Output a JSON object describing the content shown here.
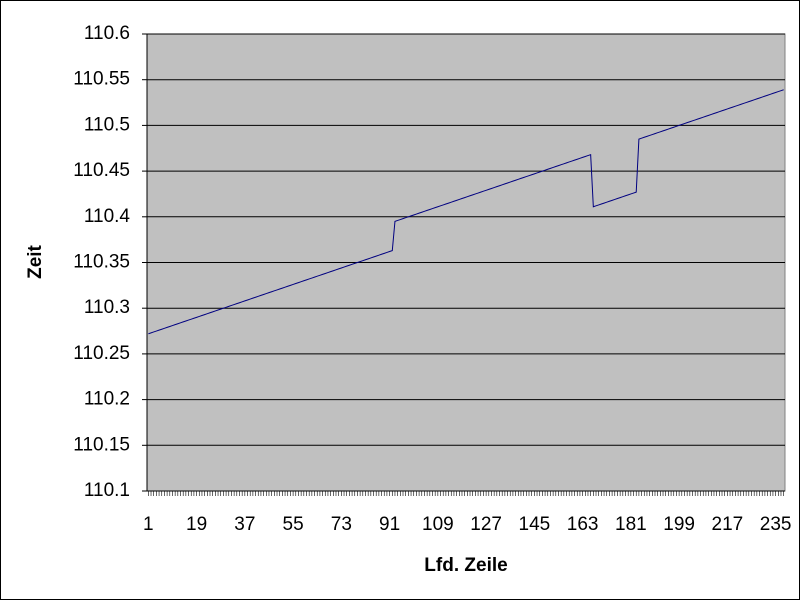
{
  "chart_data": {
    "type": "line",
    "x_label": "Lfd. Zeile",
    "y_label": "Zeit",
    "xlim": [
      0.5,
      238.5
    ],
    "xticks": [
      1,
      19,
      37,
      55,
      73,
      91,
      109,
      127,
      145,
      163,
      181,
      199,
      217,
      235
    ],
    "ylim": [
      110.1,
      110.6
    ],
    "yticks": [
      110.1,
      110.15,
      110.2,
      110.25,
      110.3,
      110.35,
      110.4,
      110.45,
      110.5,
      110.55,
      110.6
    ],
    "grid": true,
    "x": [
      1,
      2,
      3,
      4,
      5,
      6,
      7,
      8,
      9,
      10,
      11,
      12,
      13,
      14,
      15,
      16,
      17,
      18,
      19,
      20,
      21,
      22,
      23,
      24,
      25,
      26,
      27,
      28,
      29,
      30,
      31,
      32,
      33,
      34,
      35,
      36,
      37,
      38,
      39,
      40,
      41,
      42,
      43,
      44,
      45,
      46,
      47,
      48,
      49,
      50,
      51,
      52,
      53,
      54,
      55,
      56,
      57,
      58,
      59,
      60,
      61,
      62,
      63,
      64,
      65,
      66,
      67,
      68,
      69,
      70,
      71,
      72,
      73,
      74,
      75,
      76,
      77,
      78,
      79,
      80,
      81,
      82,
      83,
      84,
      85,
      86,
      87,
      88,
      89,
      90,
      91,
      92,
      93,
      94,
      95,
      96,
      97,
      98,
      99,
      100,
      101,
      102,
      103,
      104,
      105,
      106,
      107,
      108,
      109,
      110,
      111,
      112,
      113,
      114,
      115,
      116,
      117,
      118,
      119,
      120,
      121,
      122,
      123,
      124,
      125,
      126,
      127,
      128,
      129,
      130,
      131,
      132,
      133,
      134,
      135,
      136,
      137,
      138,
      139,
      140,
      141,
      142,
      143,
      144,
      145,
      146,
      147,
      148,
      149,
      150,
      151,
      152,
      153,
      154,
      155,
      156,
      157,
      158,
      159,
      160,
      161,
      162,
      163,
      164,
      165,
      166,
      167,
      168,
      169,
      170,
      171,
      172,
      173,
      174,
      175,
      176,
      177,
      178,
      179,
      180,
      181,
      182,
      183,
      184,
      185,
      186,
      187,
      188,
      189,
      190,
      191,
      192,
      193,
      194,
      195,
      196,
      197,
      198,
      199,
      200,
      201,
      202,
      203,
      204,
      205,
      206,
      207,
      208,
      209,
      210,
      211,
      212,
      213,
      214,
      215,
      216,
      217,
      218,
      219,
      220,
      221,
      222,
      223,
      224,
      225,
      226,
      227,
      228,
      229,
      230,
      231,
      232,
      233,
      234,
      235,
      236,
      237,
      238
    ],
    "series": [
      {
        "color": "#000080",
        "values": [
          110.272,
          110.273,
          110.274,
          110.275,
          110.276,
          110.277,
          110.278,
          110.279,
          110.28,
          110.281,
          110.282,
          110.283,
          110.284,
          110.285,
          110.286,
          110.287,
          110.288,
          110.289,
          110.29,
          110.291,
          110.292,
          110.293,
          110.294,
          110.295,
          110.296,
          110.297,
          110.298,
          110.299,
          110.3,
          110.301,
          110.302,
          110.303,
          110.304,
          110.305,
          110.306,
          110.307,
          110.308,
          110.309,
          110.31,
          110.311,
          110.312,
          110.313,
          110.314,
          110.315,
          110.316,
          110.317,
          110.318,
          110.319,
          110.32,
          110.321,
          110.322,
          110.323,
          110.324,
          110.325,
          110.326,
          110.327,
          110.328,
          110.329,
          110.33,
          110.331,
          110.332,
          110.333,
          110.334,
          110.335,
          110.336,
          110.337,
          110.338,
          110.339,
          110.34,
          110.341,
          110.342,
          110.343,
          110.344,
          110.345,
          110.346,
          110.347,
          110.348,
          110.349,
          110.35,
          110.351,
          110.352,
          110.353,
          110.354,
          110.355,
          110.356,
          110.357,
          110.358,
          110.359,
          110.36,
          110.361,
          110.362,
          110.363,
          110.395,
          110.396,
          110.397,
          110.398,
          110.399,
          110.4,
          110.401,
          110.402,
          110.403,
          110.404,
          110.405,
          110.406,
          110.407,
          110.408,
          110.409,
          110.41,
          110.411,
          110.412,
          110.413,
          110.414,
          110.415,
          110.416,
          110.417,
          110.418,
          110.419,
          110.42,
          110.421,
          110.422,
          110.423,
          110.424,
          110.425,
          110.426,
          110.427,
          110.428,
          110.429,
          110.43,
          110.431,
          110.432,
          110.433,
          110.434,
          110.435,
          110.436,
          110.437,
          110.438,
          110.439,
          110.44,
          110.441,
          110.442,
          110.443,
          110.444,
          110.445,
          110.446,
          110.447,
          110.448,
          110.449,
          110.45,
          110.451,
          110.452,
          110.453,
          110.454,
          110.455,
          110.456,
          110.457,
          110.458,
          110.459,
          110.46,
          110.461,
          110.462,
          110.463,
          110.464,
          110.465,
          110.466,
          110.467,
          110.468,
          110.411,
          110.412,
          110.413,
          110.414,
          110.415,
          110.416,
          110.417,
          110.418,
          110.419,
          110.42,
          110.421,
          110.422,
          110.423,
          110.424,
          110.425,
          110.426,
          110.427,
          110.485,
          110.486,
          110.487,
          110.488,
          110.489,
          110.49,
          110.491,
          110.492,
          110.493,
          110.494,
          110.495,
          110.496,
          110.497,
          110.498,
          110.499,
          110.5,
          110.501,
          110.502,
          110.503,
          110.504,
          110.505,
          110.506,
          110.507,
          110.508,
          110.509,
          110.51,
          110.511,
          110.512,
          110.513,
          110.514,
          110.515,
          110.516,
          110.517,
          110.518,
          110.519,
          110.52,
          110.521,
          110.522,
          110.523,
          110.524,
          110.525,
          110.526,
          110.527,
          110.528,
          110.529,
          110.53,
          110.531,
          110.532,
          110.533,
          110.534,
          110.535,
          110.536,
          110.537,
          110.538,
          110.539
        ]
      }
    ]
  }
}
